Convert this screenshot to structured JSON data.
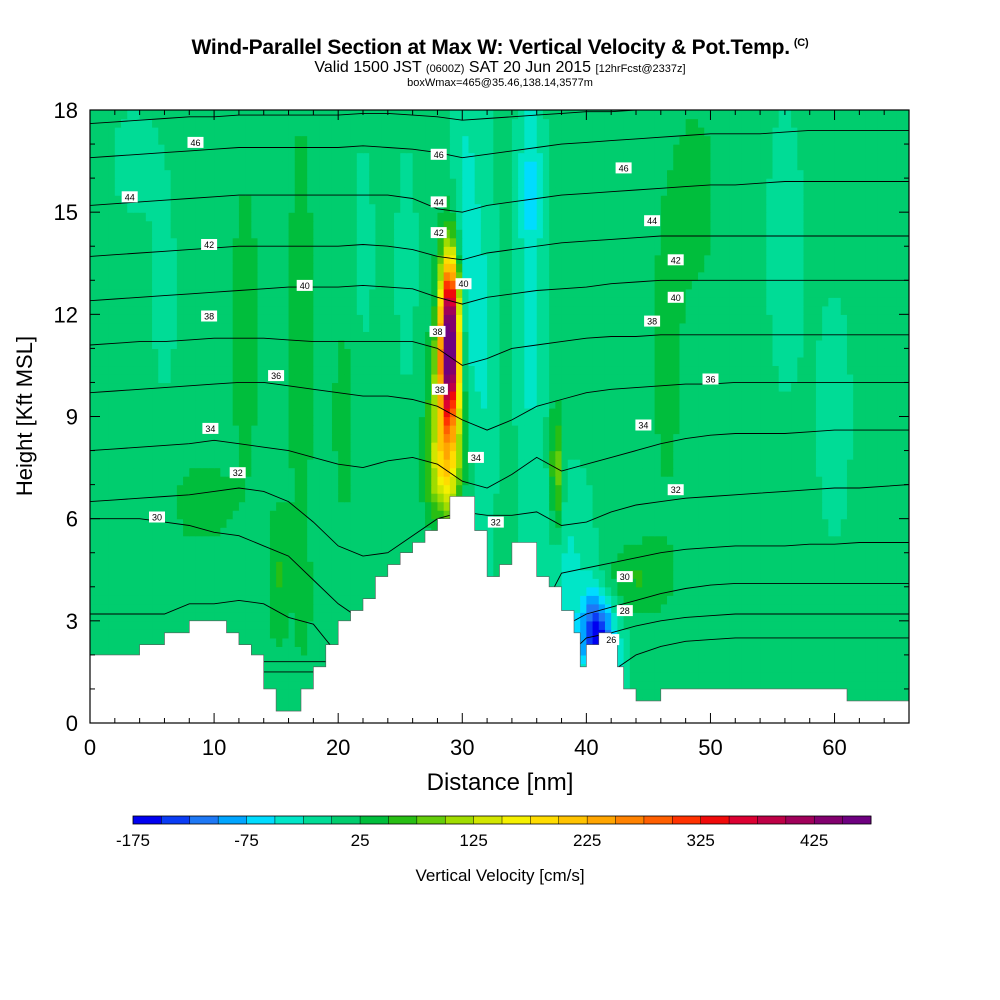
{
  "header": {
    "title": "Wind-Parallel Section at Max W: Vertical Velocity & Pot.Temp.",
    "copyright": "(C)",
    "valid_main": "Valid 1500 JST",
    "valid_utc": "(0600Z)",
    "valid_date": "SAT 20 Jun 2015",
    "forecast": "[12hrFcst@2337z]",
    "box_info": "boxWmax=465@35.46,138.14,3577m"
  },
  "chart_data": {
    "type": "heatmap",
    "title": "Wind-Parallel Section at Max W: Vertical Velocity & Pot.Temp.",
    "xlabel": "Distance [nm]",
    "ylabel": "Height [Kft MSL]",
    "xlim": [
      0,
      66
    ],
    "ylim": [
      0,
      18
    ],
    "x_ticks": [
      "0",
      "10",
      "20",
      "30",
      "40",
      "50",
      "60"
    ],
    "y_ticks": [
      "0",
      "3",
      "6",
      "9",
      "12",
      "15",
      "18"
    ],
    "colorbar": {
      "label": "Vertical Velocity [cm/s]",
      "tick_labels": [
        "-175",
        "-75",
        "25",
        "125",
        "225",
        "325",
        "425"
      ],
      "min": -175,
      "max": 475,
      "step": 25,
      "colors": [
        "#0000f0",
        "#0a3cf5",
        "#1e78f5",
        "#00a5ff",
        "#00dcff",
        "#00e6c8",
        "#00dc96",
        "#00cd6e",
        "#00be3c",
        "#28be14",
        "#64cd0a",
        "#a0dc00",
        "#d2e600",
        "#f5f000",
        "#ffdc00",
        "#ffc300",
        "#ffa500",
        "#ff8200",
        "#ff5f00",
        "#ff3200",
        "#f00a0a",
        "#dc0032",
        "#be0046",
        "#a0005a",
        "#82006e",
        "#6e0080"
      ]
    },
    "background_velocity": 10,
    "velocity_features": [
      {
        "x": 29.0,
        "y": 11.5,
        "sx": 0.55,
        "sy": 1.6,
        "w": 470
      },
      {
        "x": 28.8,
        "y": 9.0,
        "sx": 0.9,
        "sy": 1.6,
        "w": 170
      },
      {
        "x": 28.5,
        "y": 7.3,
        "sx": 1.0,
        "sy": 0.9,
        "w": 80
      },
      {
        "x": 30.2,
        "y": 13.0,
        "sx": 0.7,
        "sy": 4.0,
        "w": -60
      },
      {
        "x": 31.8,
        "y": 11.0,
        "sx": 0.7,
        "sy": 5.0,
        "w": -35
      },
      {
        "x": 35.5,
        "y": 12.5,
        "sx": 0.8,
        "sy": 5.0,
        "w": -45
      },
      {
        "x": 37.6,
        "y": 7.3,
        "sx": 0.35,
        "sy": 1.3,
        "w": 90
      },
      {
        "x": 40.8,
        "y": 2.6,
        "sx": 0.9,
        "sy": 0.9,
        "w": -170
      },
      {
        "x": 42.3,
        "y": 1.5,
        "sx": 0.7,
        "sy": 0.8,
        "w": -60
      },
      {
        "x": 38.5,
        "y": 4.5,
        "sx": 1.5,
        "sy": 2.0,
        "w": -40
      },
      {
        "x": 12.5,
        "y": 11.5,
        "sx": 1.0,
        "sy": 4.0,
        "w": 25
      },
      {
        "x": 17.0,
        "y": 11.5,
        "sx": 0.8,
        "sy": 5.0,
        "w": 30
      },
      {
        "x": 20.5,
        "y": 9.0,
        "sx": 0.8,
        "sy": 2.5,
        "w": 25
      },
      {
        "x": 22.0,
        "y": 14.0,
        "sx": 0.7,
        "sy": 2.5,
        "w": -20
      },
      {
        "x": 25.5,
        "y": 13.5,
        "sx": 0.7,
        "sy": 3.0,
        "w": -20
      },
      {
        "x": 9.0,
        "y": 6.5,
        "sx": 1.5,
        "sy": 0.8,
        "w": 40
      },
      {
        "x": 6.0,
        "y": 12.5,
        "sx": 1.0,
        "sy": 3.0,
        "w": -15
      },
      {
        "x": 15.2,
        "y": 4.3,
        "sx": 0.6,
        "sy": 1.5,
        "w": 40
      },
      {
        "x": 17.2,
        "y": 3.5,
        "sx": 0.5,
        "sy": 1.4,
        "w": 20
      },
      {
        "x": 46.5,
        "y": 11.0,
        "sx": 1.3,
        "sy": 5.0,
        "w": 20
      },
      {
        "x": 49.0,
        "y": 15.5,
        "sx": 1.2,
        "sy": 2.0,
        "w": 25
      },
      {
        "x": 56.0,
        "y": 14.0,
        "sx": 1.2,
        "sy": 3.5,
        "w": -20
      },
      {
        "x": 60.0,
        "y": 9.0,
        "sx": 1.5,
        "sy": 4.0,
        "w": -15
      },
      {
        "x": 3.5,
        "y": 16.5,
        "sx": 1.5,
        "sy": 1.3,
        "w": -18
      },
      {
        "x": 44.0,
        "y": 4.3,
        "sx": 1.8,
        "sy": 0.7,
        "w": 40
      },
      {
        "x": 35.5,
        "y": 16.0,
        "sx": 0.6,
        "sy": 1.5,
        "w": -35
      }
    ],
    "terrain": [
      [
        0,
        2.0
      ],
      [
        4,
        2.0
      ],
      [
        4,
        2.3
      ],
      [
        6,
        2.3
      ],
      [
        6,
        2.65
      ],
      [
        8,
        2.65
      ],
      [
        8,
        3.0
      ],
      [
        11,
        3.0
      ],
      [
        11,
        2.65
      ],
      [
        12,
        2.65
      ],
      [
        12,
        2.3
      ],
      [
        13,
        2.3
      ],
      [
        13,
        2.0
      ],
      [
        14,
        2.0
      ],
      [
        14,
        1.0
      ],
      [
        15,
        1.0
      ],
      [
        15,
        0.35
      ],
      [
        17,
        0.35
      ],
      [
        17,
        1.0
      ],
      [
        18,
        1.0
      ],
      [
        18,
        1.65
      ],
      [
        19,
        1.65
      ],
      [
        19,
        2.3
      ],
      [
        20,
        2.3
      ],
      [
        20,
        3.0
      ],
      [
        21,
        3.0
      ],
      [
        21,
        3.3
      ],
      [
        22,
        3.3
      ],
      [
        22,
        3.65
      ],
      [
        23,
        3.65
      ],
      [
        23,
        4.3
      ],
      [
        24,
        4.3
      ],
      [
        24,
        4.65
      ],
      [
        25,
        4.65
      ],
      [
        25,
        5.0
      ],
      [
        26,
        5.0
      ],
      [
        26,
        5.3
      ],
      [
        27,
        5.3
      ],
      [
        27,
        5.3
      ],
      [
        27,
        5.65
      ],
      [
        28,
        5.65
      ],
      [
        28,
        6.0
      ],
      [
        29,
        6.0
      ],
      [
        29,
        6.65
      ],
      [
        31,
        6.65
      ],
      [
        31,
        5.65
      ],
      [
        32,
        5.65
      ],
      [
        32,
        4.3
      ],
      [
        33,
        4.3
      ],
      [
        33,
        4.65
      ],
      [
        34,
        4.65
      ],
      [
        34,
        5.3
      ],
      [
        36,
        5.3
      ],
      [
        36,
        4.3
      ],
      [
        37,
        4.3
      ],
      [
        37,
        4.0
      ],
      [
        38,
        4.0
      ],
      [
        38,
        3.3
      ],
      [
        39,
        3.3
      ],
      [
        39,
        2.65
      ],
      [
        39.5,
        2.65
      ],
      [
        39.5,
        1.65
      ],
      [
        40,
        1.65
      ],
      [
        40,
        2.3
      ],
      [
        41,
        2.3
      ],
      [
        41,
        2.65
      ],
      [
        42,
        2.65
      ],
      [
        42,
        2.3
      ],
      [
        42.5,
        2.3
      ],
      [
        42.5,
        1.65
      ],
      [
        43,
        1.65
      ],
      [
        43,
        1.0
      ],
      [
        44,
        1.0
      ],
      [
        44,
        0.65
      ],
      [
        46,
        0.65
      ],
      [
        46,
        1.0
      ],
      [
        61,
        1.0
      ],
      [
        61,
        0.65
      ],
      [
        66,
        0.65
      ]
    ],
    "theta_contours": [
      {
        "level": 26,
        "y": [
          1.5,
          1.5,
          1.5,
          1.5,
          1.5,
          1.5,
          1.5,
          1.5,
          1.5,
          1.5,
          1.5,
          1.5,
          1.5,
          1.5,
          1.5,
          1.5,
          1.5,
          1.5,
          1.5,
          1.5,
          1.5,
          1.5,
          2.0,
          2.25,
          2.4,
          2.45,
          2.5,
          2.5,
          2.5,
          2.5,
          2.5,
          2.5,
          2.5,
          2.5
        ]
      },
      {
        "level": 28,
        "y": [
          1.8,
          1.8,
          1.8,
          1.8,
          1.8,
          1.8,
          1.8,
          1.8,
          1.8,
          1.8,
          1.8,
          1.8,
          1.8,
          1.8,
          1.8,
          1.8,
          1.8,
          1.8,
          1.8,
          1.8,
          2.5,
          2.65,
          2.85,
          3.0,
          3.1,
          3.15,
          3.2,
          3.2,
          3.2,
          3.2,
          3.2,
          3.2,
          3.2,
          3.2
        ]
      },
      {
        "level": 30,
        "y": [
          3.2,
          3.2,
          3.2,
          3.2,
          3.5,
          3.5,
          3.6,
          3.5,
          3.1,
          2.9,
          2.0,
          2.0,
          2.0,
          2.0,
          2.0,
          2.0,
          2.0,
          2.0,
          2.0,
          2.8,
          3.2,
          3.4,
          3.6,
          3.8,
          3.95,
          4.05,
          4.1,
          4.1,
          4.1,
          4.1,
          4.1,
          4.1,
          4.1,
          4.1
        ]
      },
      {
        "level": 30,
        "y": [
          6.0,
          6.0,
          6.0,
          5.9,
          5.8,
          5.6,
          5.5,
          5.2,
          4.9,
          4.2,
          3.5,
          3.0,
          3.0,
          3.0,
          3.0,
          3.0,
          3.0,
          3.0,
          3.0,
          4.4,
          4.55,
          4.7,
          4.85,
          5.0,
          5.1,
          5.15,
          5.2,
          5.2,
          5.2,
          5.25,
          5.25,
          5.3,
          5.3,
          5.3
        ]
      },
      {
        "level": 32,
        "y": [
          6.5,
          6.55,
          6.6,
          6.65,
          6.7,
          6.8,
          6.9,
          6.8,
          6.5,
          5.9,
          5.2,
          4.9,
          5.0,
          5.5,
          6.0,
          6.2,
          6.1,
          6.1,
          6.2,
          5.8,
          5.9,
          6.2,
          6.4,
          6.5,
          6.6,
          6.65,
          6.7,
          6.75,
          6.8,
          6.85,
          6.9,
          6.9,
          6.95,
          7.0
        ]
      },
      {
        "level": 34,
        "y": [
          8.0,
          8.05,
          8.1,
          8.15,
          8.2,
          8.3,
          8.2,
          8.1,
          8.0,
          7.8,
          7.6,
          7.5,
          7.7,
          7.8,
          7.6,
          7.1,
          6.9,
          7.3,
          7.8,
          7.4,
          7.6,
          7.8,
          8.0,
          8.2,
          8.35,
          8.45,
          8.5,
          8.5,
          8.5,
          8.55,
          8.6,
          8.6,
          8.6,
          8.6
        ]
      },
      {
        "level": 36,
        "y": [
          9.7,
          9.75,
          9.8,
          9.85,
          9.9,
          9.95,
          10.0,
          10.0,
          9.9,
          9.8,
          9.7,
          9.6,
          9.6,
          9.5,
          9.3,
          8.9,
          8.6,
          8.9,
          9.3,
          9.5,
          9.7,
          9.8,
          9.85,
          9.9,
          9.95,
          9.95,
          10.0,
          10.0,
          10.0,
          10.0,
          10.0,
          10.0,
          10.0,
          10.0
        ]
      },
      {
        "level": 38,
        "y": [
          11.1,
          11.15,
          11.2,
          11.2,
          11.25,
          11.3,
          11.3,
          11.3,
          11.25,
          11.2,
          11.2,
          11.2,
          11.2,
          11.2,
          11.0,
          10.5,
          10.7,
          11.0,
          11.1,
          11.2,
          11.3,
          11.35,
          11.35,
          11.4,
          11.4,
          11.4,
          11.4,
          11.4,
          11.4,
          11.4,
          11.4,
          11.4,
          11.4,
          11.4
        ]
      },
      {
        "level": 40,
        "y": [
          12.4,
          12.45,
          12.5,
          12.55,
          12.6,
          12.65,
          12.7,
          12.75,
          12.8,
          12.8,
          12.8,
          12.85,
          12.8,
          12.75,
          12.5,
          12.3,
          12.5,
          12.6,
          12.7,
          12.75,
          12.8,
          12.9,
          12.95,
          13.0,
          13.0,
          13.0,
          13.0,
          13.0,
          13.0,
          13.0,
          13.0,
          13.0,
          13.0,
          13.0
        ]
      },
      {
        "level": 42,
        "y": [
          13.7,
          13.75,
          13.8,
          13.85,
          13.9,
          13.95,
          14.0,
          14.0,
          14.0,
          14.0,
          14.0,
          14.05,
          14.0,
          13.9,
          13.7,
          13.6,
          13.8,
          13.9,
          14.0,
          14.1,
          14.15,
          14.2,
          14.25,
          14.3,
          14.3,
          14.3,
          14.3,
          14.3,
          14.3,
          14.3,
          14.3,
          14.3,
          14.3,
          14.3
        ]
      },
      {
        "level": 44,
        "y": [
          15.2,
          15.25,
          15.3,
          15.35,
          15.4,
          15.45,
          15.5,
          15.5,
          15.5,
          15.5,
          15.5,
          15.5,
          15.5,
          15.4,
          15.1,
          15.0,
          15.2,
          15.3,
          15.4,
          15.5,
          15.55,
          15.6,
          15.65,
          15.7,
          15.75,
          15.8,
          15.8,
          15.85,
          15.9,
          15.9,
          15.9,
          15.9,
          15.9,
          15.9
        ]
      },
      {
        "level": 46,
        "y": [
          16.6,
          16.65,
          16.7,
          16.75,
          16.8,
          16.85,
          16.9,
          16.9,
          16.9,
          16.9,
          16.9,
          16.95,
          16.9,
          16.85,
          16.75,
          16.6,
          16.7,
          16.8,
          16.9,
          17.0,
          17.05,
          17.1,
          17.15,
          17.2,
          17.25,
          17.3,
          17.3,
          17.3,
          17.35,
          17.4,
          17.4,
          17.4,
          17.4,
          17.4
        ]
      },
      {
        "level": 48,
        "y": [
          17.6,
          17.65,
          17.7,
          17.75,
          17.8,
          17.8,
          17.85,
          17.85,
          17.85,
          17.85,
          17.85,
          17.9,
          17.9,
          17.85,
          17.8,
          17.7,
          17.75,
          17.8,
          17.85,
          17.9,
          17.95,
          17.95,
          18.0,
          18.0,
          18.0,
          18.0,
          18.0,
          18.0,
          18.0,
          18.0,
          18.0,
          18.0,
          18.0,
          18.0
        ]
      }
    ],
    "contour_labels": [
      {
        "text": "46",
        "x": 8.5,
        "y": 17.05
      },
      {
        "text": "44",
        "x": 3.2,
        "y": 15.45
      },
      {
        "text": "42",
        "x": 9.6,
        "y": 14.05
      },
      {
        "text": "40",
        "x": 17.3,
        "y": 12.85
      },
      {
        "text": "38",
        "x": 9.6,
        "y": 11.95
      },
      {
        "text": "36",
        "x": 15.0,
        "y": 10.2
      },
      {
        "text": "34",
        "x": 9.7,
        "y": 8.65
      },
      {
        "text": "32",
        "x": 11.9,
        "y": 7.35
      },
      {
        "text": "30",
        "x": 5.4,
        "y": 6.05
      },
      {
        "text": "46",
        "x": 28.1,
        "y": 16.7
      },
      {
        "text": "44",
        "x": 28.1,
        "y": 15.3
      },
      {
        "text": "42",
        "x": 28.1,
        "y": 14.4
      },
      {
        "text": "40",
        "x": 30.1,
        "y": 12.9
      },
      {
        "text": "38",
        "x": 28.0,
        "y": 11.5
      },
      {
        "text": "38",
        "x": 28.2,
        "y": 9.8
      },
      {
        "text": "34",
        "x": 31.1,
        "y": 7.8
      },
      {
        "text": "32",
        "x": 32.7,
        "y": 5.9
      },
      {
        "text": "46",
        "x": 43.0,
        "y": 16.3
      },
      {
        "text": "44",
        "x": 45.3,
        "y": 14.75
      },
      {
        "text": "42",
        "x": 47.2,
        "y": 13.6
      },
      {
        "text": "40",
        "x": 47.2,
        "y": 12.5
      },
      {
        "text": "38",
        "x": 45.3,
        "y": 11.8
      },
      {
        "text": "36",
        "x": 50.0,
        "y": 10.1
      },
      {
        "text": "34",
        "x": 44.6,
        "y": 8.75
      },
      {
        "text": "32",
        "x": 47.2,
        "y": 6.85
      },
      {
        "text": "30",
        "x": 43.1,
        "y": 4.3
      },
      {
        "text": "28",
        "x": 43.1,
        "y": 3.3
      },
      {
        "text": "26",
        "x": 42.0,
        "y": 2.45
      }
    ]
  }
}
